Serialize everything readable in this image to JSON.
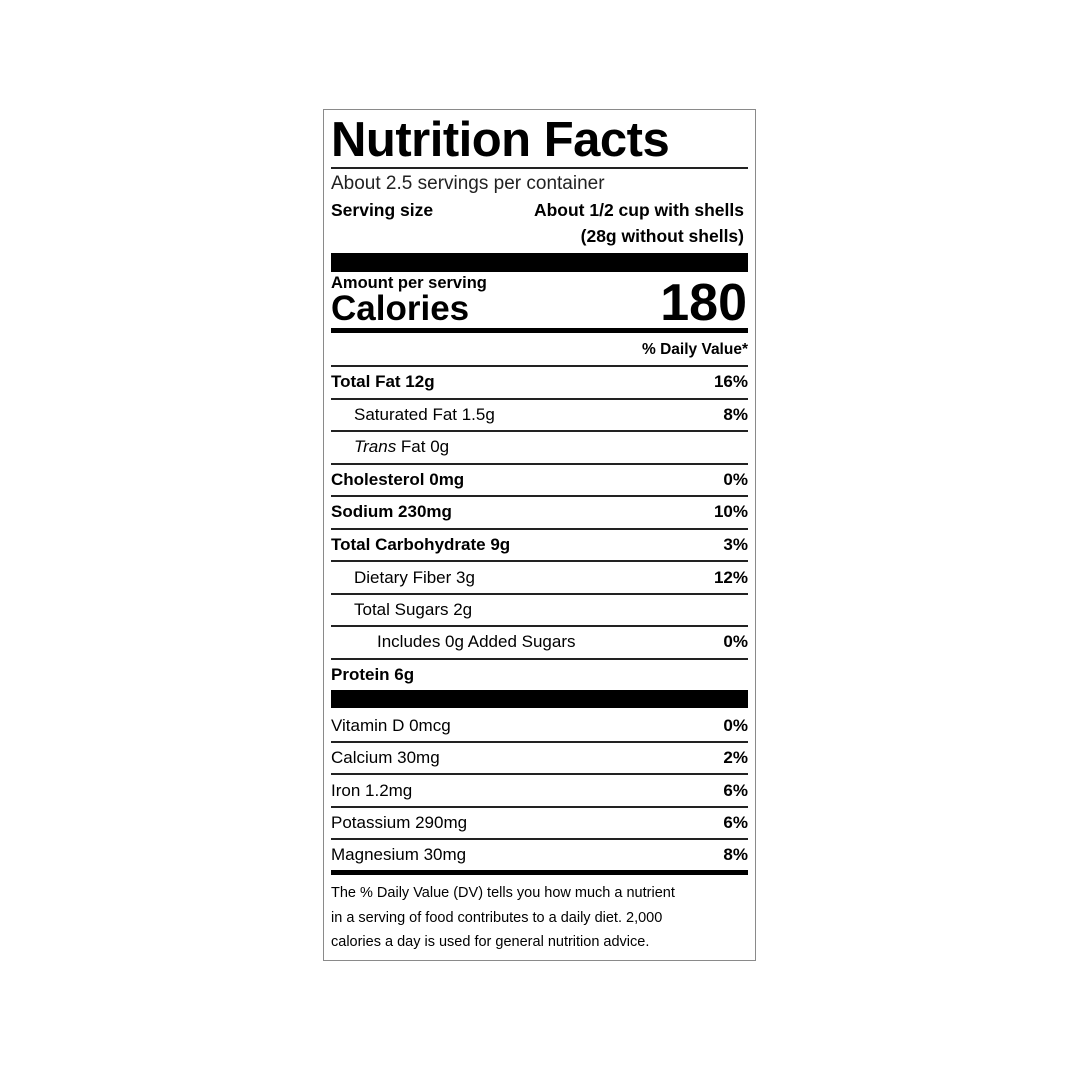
{
  "title": "Nutrition Facts",
  "servings_per_container": "About 2.5 servings per container",
  "serving_size": {
    "label": "Serving size",
    "value_line1": "About 1/2 cup with shells",
    "value_line2": "(28g without shells)"
  },
  "amount_per_serving": "Amount per serving",
  "calories": {
    "label": "Calories",
    "value": "180"
  },
  "daily_value_header": "% Daily Value*",
  "nutrients": [
    {
      "name": "Total Fat 12g",
      "dv": "16%"
    },
    {
      "name": "Saturated Fat 1.5g",
      "dv": "8%"
    },
    {
      "name_italic": "Trans",
      "name": " Fat 0g",
      "dv": ""
    },
    {
      "name": "Cholesterol 0mg",
      "dv": "0%"
    },
    {
      "name": "Sodium 230mg",
      "dv": "10%"
    },
    {
      "name": "Total Carbohydrate 9g",
      "dv": "3%"
    },
    {
      "name": "Dietary Fiber 3g",
      "dv": "12%"
    },
    {
      "name": "Total Sugars 2g",
      "dv": ""
    },
    {
      "name": "Includes 0g Added Sugars",
      "dv": "0%"
    },
    {
      "name": "Protein 6g",
      "dv": ""
    }
  ],
  "vitamins": [
    {
      "name": "Vitamin D 0mcg",
      "dv": "0%"
    },
    {
      "name": "Calcium 30mg",
      "dv": "2%"
    },
    {
      "name": "Iron 1.2mg",
      "dv": "6%"
    },
    {
      "name": "Potassium 290mg",
      "dv": "6%"
    },
    {
      "name": "Magnesium 30mg",
      "dv": "8%"
    }
  ],
  "footnote": [
    "The % Daily Value (DV) tells you how much a nutrient",
    "in a serving of food contributes to a daily diet. 2,000",
    "calories a day is used for general nutrition advice."
  ]
}
